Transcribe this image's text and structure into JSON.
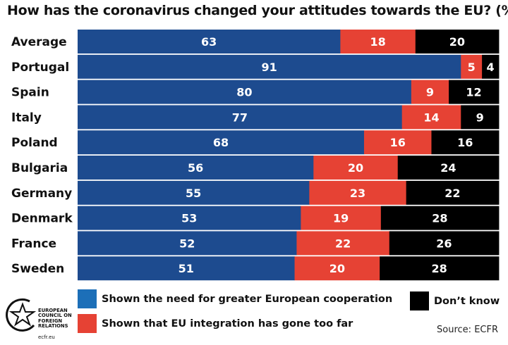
{
  "chart_data": {
    "type": "bar",
    "orientation": "horizontal",
    "stacked": true,
    "title": "How has the coronavirus changed your attitudes towards the EU? (%)",
    "categories": [
      "Average",
      "Portugal",
      "Spain",
      "Italy",
      "Poland",
      "Bulgaria",
      "Germany",
      "Denmark",
      "France",
      "Sweden"
    ],
    "series": [
      {
        "name": "Shown the need for greater European cooperation",
        "color": "#1d4b8f",
        "values": [
          63,
          91,
          80,
          77,
          68,
          56,
          55,
          53,
          52,
          51
        ]
      },
      {
        "name": "Shown that EU integration has gone too far",
        "color": "#e64234",
        "values": [
          18,
          5,
          9,
          14,
          16,
          20,
          23,
          19,
          22,
          20
        ]
      },
      {
        "name": "Don't know",
        "color": "#000000",
        "values": [
          20,
          4,
          12,
          9,
          16,
          24,
          22,
          28,
          26,
          28
        ]
      }
    ],
    "legend": "bottom"
  },
  "legend": {
    "cooperation": "Shown the need for greater European cooperation",
    "too_far": "Shown that EU integration has gone too far",
    "dont_know": "Don’t know"
  },
  "source": "Source: ECFR",
  "logo": {
    "name": "EUROPEAN COUNCIL ON FOREIGN RELATIONS",
    "url": "ecfr.eu"
  }
}
